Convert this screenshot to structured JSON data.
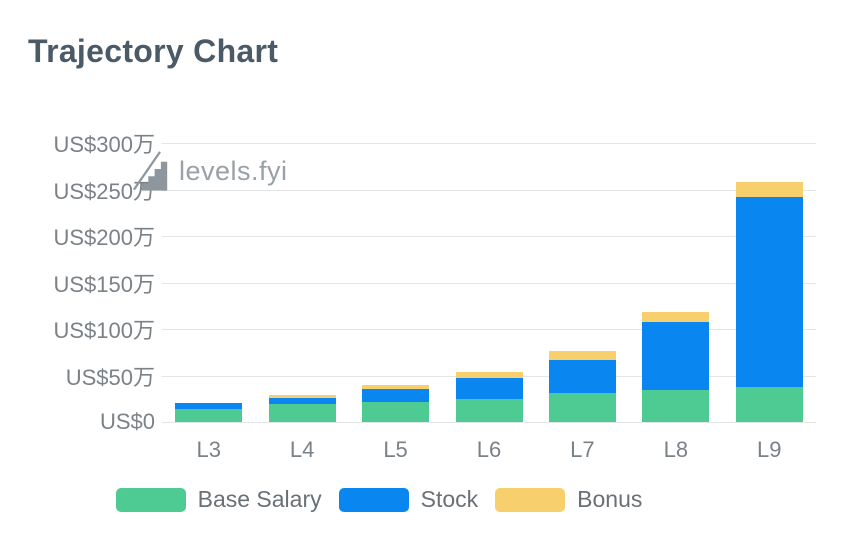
{
  "title": "Trajectory Chart",
  "watermark": {
    "text": "levels.fyi",
    "icon": "stairs-logo-icon",
    "icon_color": "#8d979d"
  },
  "colors": {
    "background": "#ffffff",
    "title_text": "#4b5a67",
    "axis_label_text": "#7b8287",
    "gridline": "#e3e5e6",
    "legend_text": "#697076",
    "base_salary": "#4ecb93",
    "stock": "#0a86f1",
    "bonus": "#f7cf6d"
  },
  "chart_data": {
    "type": "bar",
    "stacked": true,
    "title": "Trajectory Chart",
    "unit": "万 = US$10,000",
    "categories": [
      "L3",
      "L4",
      "L5",
      "L6",
      "L7",
      "L8",
      "L9"
    ],
    "series": [
      {
        "name": "Base Salary",
        "color": "#4ecb93",
        "values": [
          14,
          19,
          22,
          25,
          31,
          34,
          38
        ]
      },
      {
        "name": "Stock",
        "color": "#0a86f1",
        "values": [
          6,
          7,
          14,
          22,
          36,
          73,
          204
        ]
      },
      {
        "name": "Bonus",
        "color": "#f7cf6d",
        "values": [
          0,
          3,
          4,
          7,
          9,
          11,
          16
        ]
      }
    ],
    "stack_totals": [
      20,
      29,
      40,
      54,
      76,
      118,
      258
    ],
    "y_axis": {
      "range": [
        0,
        300
      ],
      "ticks": [
        {
          "label": "US$0",
          "value": 0
        },
        {
          "label": "US$50万",
          "value": 50
        },
        {
          "label": "US$100万",
          "value": 100
        },
        {
          "label": "US$150万",
          "value": 150
        },
        {
          "label": "US$200万",
          "value": 200
        },
        {
          "label": "US$250万",
          "value": 250
        },
        {
          "label": "US$300万",
          "value": 300
        }
      ]
    },
    "grid": "horizontal",
    "legend_position": "bottom"
  }
}
